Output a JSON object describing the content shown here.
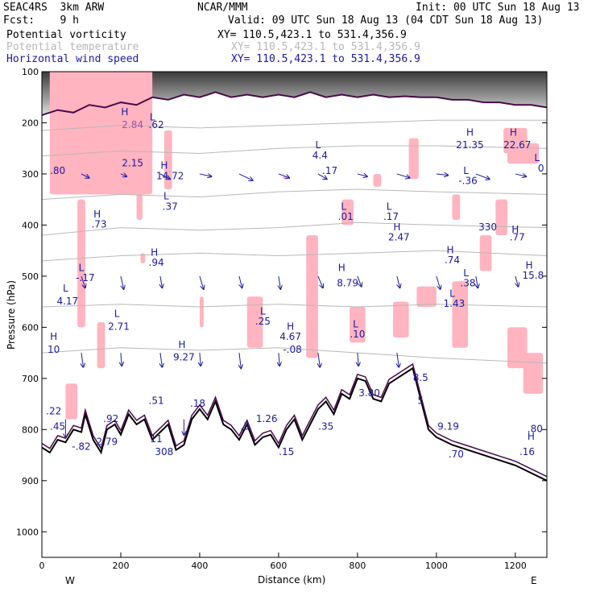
{
  "header": {
    "model": "SEAC4RS  3km ARW",
    "org": "NCAR/MMM",
    "init": "Init: 00 UTC Sun 18 Aug 13",
    "fcst": "Fcst:    9 h",
    "valid": "Valid: 09 UTC Sun 18 Aug 13 (04 CDT Sun 18 Aug 13)"
  },
  "fields": [
    {
      "name": "Potential vorticity",
      "xy": "XY= 110.5,423.1 to 531.4,356.9",
      "color": "#000000"
    },
    {
      "name": "Potential temperature",
      "xy": "XY= 110.5,423.1 to 531.4,356.9",
      "color": "#b8b8b8"
    },
    {
      "name": "Horizontal wind speed",
      "xy": "XY= 110.5,423.1 to 531.4,356.9",
      "color": "#1a1aa0"
    }
  ],
  "chart_data": {
    "type": "cross-section",
    "xlabel": "Distance (km)",
    "ylabel": "Pressure (hPa)",
    "xlim": [
      0,
      1280
    ],
    "ylim": [
      1050,
      100
    ],
    "x_ticks": [
      0,
      200,
      400,
      600,
      800,
      1000,
      1200
    ],
    "y_ticks": [
      100,
      200,
      300,
      400,
      500,
      600,
      700,
      800,
      900,
      1000
    ],
    "left_end": "W",
    "right_end": "E",
    "terrain": [
      [
        0,
        835
      ],
      [
        20,
        845
      ],
      [
        40,
        820
      ],
      [
        60,
        825
      ],
      [
        80,
        800
      ],
      [
        100,
        805
      ],
      [
        110,
        770
      ],
      [
        130,
        820
      ],
      [
        150,
        845
      ],
      [
        165,
        800
      ],
      [
        185,
        790
      ],
      [
        200,
        810
      ],
      [
        220,
        770
      ],
      [
        240,
        790
      ],
      [
        260,
        780
      ],
      [
        280,
        820
      ],
      [
        300,
        805
      ],
      [
        320,
        790
      ],
      [
        340,
        840
      ],
      [
        360,
        830
      ],
      [
        380,
        780
      ],
      [
        400,
        760
      ],
      [
        420,
        780
      ],
      [
        440,
        745
      ],
      [
        460,
        790
      ],
      [
        480,
        800
      ],
      [
        500,
        820
      ],
      [
        520,
        790
      ],
      [
        540,
        830
      ],
      [
        560,
        815
      ],
      [
        580,
        810
      ],
      [
        600,
        835
      ],
      [
        620,
        800
      ],
      [
        640,
        780
      ],
      [
        660,
        820
      ],
      [
        680,
        790
      ],
      [
        700,
        760
      ],
      [
        720,
        745
      ],
      [
        740,
        770
      ],
      [
        760,
        730
      ],
      [
        780,
        740
      ],
      [
        800,
        700
      ],
      [
        820,
        705
      ],
      [
        840,
        740
      ],
      [
        860,
        745
      ],
      [
        880,
        710
      ],
      [
        900,
        700
      ],
      [
        920,
        690
      ],
      [
        940,
        680
      ],
      [
        960,
        740
      ],
      [
        980,
        800
      ],
      [
        1000,
        815
      ],
      [
        1040,
        830
      ],
      [
        1080,
        840
      ],
      [
        1120,
        850
      ],
      [
        1160,
        860
      ],
      [
        1200,
        870
      ],
      [
        1240,
        885
      ],
      [
        1280,
        900
      ]
    ],
    "tropopause": [
      [
        0,
        185
      ],
      [
        40,
        175
      ],
      [
        80,
        180
      ],
      [
        120,
        165
      ],
      [
        160,
        170
      ],
      [
        200,
        160
      ],
      [
        240,
        165
      ],
      [
        280,
        150
      ],
      [
        320,
        155
      ],
      [
        360,
        145
      ],
      [
        400,
        150
      ],
      [
        440,
        140
      ],
      [
        480,
        150
      ],
      [
        520,
        145
      ],
      [
        560,
        150
      ],
      [
        600,
        145
      ],
      [
        640,
        150
      ],
      [
        680,
        140
      ],
      [
        720,
        150
      ],
      [
        760,
        145
      ],
      [
        800,
        150
      ],
      [
        840,
        145
      ],
      [
        880,
        150
      ],
      [
        920,
        148
      ],
      [
        960,
        150
      ],
      [
        1000,
        150
      ],
      [
        1040,
        155
      ],
      [
        1080,
        155
      ],
      [
        1120,
        160
      ],
      [
        1160,
        160
      ],
      [
        1200,
        165
      ],
      [
        1240,
        165
      ],
      [
        1280,
        170
      ]
    ],
    "isentropes": [
      [
        [
          0,
          215
        ],
        [
          200,
          205
        ],
        [
          400,
          210
        ],
        [
          600,
          205
        ],
        [
          800,
          200
        ],
        [
          1000,
          195
        ],
        [
          1280,
          195
        ]
      ],
      [
        [
          0,
          265
        ],
        [
          200,
          255
        ],
        [
          400,
          260
        ],
        [
          600,
          250
        ],
        [
          800,
          245
        ],
        [
          1000,
          245
        ],
        [
          1280,
          250
        ]
      ],
      [
        [
          0,
          350
        ],
        [
          200,
          340
        ],
        [
          400,
          345
        ],
        [
          600,
          335
        ],
        [
          800,
          330
        ],
        [
          1000,
          335
        ],
        [
          1280,
          340
        ]
      ],
      [
        [
          0,
          420
        ],
        [
          200,
          405
        ],
        [
          400,
          410
        ],
        [
          600,
          405
        ],
        [
          800,
          395
        ],
        [
          1000,
          400
        ],
        [
          1280,
          405
        ]
      ],
      [
        [
          0,
          470
        ],
        [
          200,
          460
        ],
        [
          400,
          455
        ],
        [
          600,
          460
        ],
        [
          800,
          455
        ],
        [
          1000,
          450
        ],
        [
          1280,
          460
        ]
      ],
      [
        [
          0,
          560
        ],
        [
          200,
          555
        ],
        [
          400,
          560
        ],
        [
          600,
          555
        ],
        [
          800,
          560
        ],
        [
          1000,
          555
        ],
        [
          1280,
          560
        ]
      ],
      [
        [
          0,
          650
        ],
        [
          200,
          640
        ],
        [
          400,
          645
        ],
        [
          600,
          640
        ],
        [
          800,
          650
        ],
        [
          1000,
          660
        ],
        [
          1280,
          670
        ]
      ]
    ],
    "pv_patches": [
      [
        20,
        280,
        60,
        340
      ],
      [
        150,
        190,
        40,
        210
      ],
      [
        240,
        255,
        130,
        390
      ],
      [
        310,
        330,
        215,
        330
      ],
      [
        90,
        110,
        350,
        600
      ],
      [
        250,
        262,
        455,
        475
      ],
      [
        400,
        410,
        540,
        600
      ],
      [
        610,
        625,
        305,
        310
      ],
      [
        840,
        860,
        300,
        325
      ],
      [
        930,
        955,
        230,
        310
      ],
      [
        1040,
        1060,
        340,
        390
      ],
      [
        1110,
        1140,
        420,
        490
      ],
      [
        1170,
        1230,
        210,
        260
      ],
      [
        1180,
        1260,
        240,
        280
      ],
      [
        60,
        90,
        710,
        780
      ],
      [
        140,
        160,
        590,
        680
      ],
      [
        520,
        560,
        540,
        640
      ],
      [
        670,
        700,
        420,
        660
      ],
      [
        760,
        790,
        350,
        400
      ],
      [
        780,
        820,
        560,
        630
      ],
      [
        890,
        930,
        550,
        620
      ],
      [
        950,
        1000,
        520,
        560
      ],
      [
        1040,
        1080,
        510,
        640
      ],
      [
        1150,
        1180,
        350,
        420
      ],
      [
        1180,
        1230,
        600,
        680
      ],
      [
        1220,
        1270,
        650,
        730
      ]
    ],
    "wind_vectors": [
      {
        "x": 100,
        "p": 300,
        "u": 8,
        "v": 3
      },
      {
        "x": 200,
        "p": 300,
        "u": 6,
        "v": 2
      },
      {
        "x": 300,
        "p": 300,
        "u": 10,
        "v": 4
      },
      {
        "x": 400,
        "p": 300,
        "u": 12,
        "v": 2
      },
      {
        "x": 500,
        "p": 300,
        "u": 14,
        "v": 5
      },
      {
        "x": 600,
        "p": 300,
        "u": 11,
        "v": 3
      },
      {
        "x": 700,
        "p": 300,
        "u": 9,
        "v": 4
      },
      {
        "x": 800,
        "p": 300,
        "u": 10,
        "v": 2
      },
      {
        "x": 900,
        "p": 300,
        "u": 13,
        "v": 3
      },
      {
        "x": 1000,
        "p": 300,
        "u": 12,
        "v": 1
      },
      {
        "x": 1100,
        "p": 300,
        "u": 14,
        "v": 4
      },
      {
        "x": 1200,
        "p": 300,
        "u": 11,
        "v": 2
      },
      {
        "x": 100,
        "p": 500,
        "u": 4,
        "v": 9
      },
      {
        "x": 200,
        "p": 500,
        "u": 3,
        "v": 10
      },
      {
        "x": 300,
        "p": 500,
        "u": 2,
        "v": 9
      },
      {
        "x": 400,
        "p": 500,
        "u": 4,
        "v": 10
      },
      {
        "x": 500,
        "p": 500,
        "u": 3,
        "v": 9
      },
      {
        "x": 600,
        "p": 500,
        "u": 2,
        "v": 10
      },
      {
        "x": 700,
        "p": 500,
        "u": 5,
        "v": 9
      },
      {
        "x": 800,
        "p": 500,
        "u": 4,
        "v": 8
      },
      {
        "x": 900,
        "p": 500,
        "u": 3,
        "v": 9
      },
      {
        "x": 1000,
        "p": 500,
        "u": 4,
        "v": 10
      },
      {
        "x": 1100,
        "p": 500,
        "u": 2,
        "v": 9
      },
      {
        "x": 1200,
        "p": 500,
        "u": 3,
        "v": 8
      },
      {
        "x": 100,
        "p": 650,
        "u": 2,
        "v": 11
      },
      {
        "x": 200,
        "p": 650,
        "u": 1,
        "v": 10
      },
      {
        "x": 300,
        "p": 650,
        "u": 2,
        "v": 11
      },
      {
        "x": 400,
        "p": 650,
        "u": 1,
        "v": 10
      },
      {
        "x": 500,
        "p": 650,
        "u": 2,
        "v": 12
      },
      {
        "x": 600,
        "p": 650,
        "u": 1,
        "v": 10
      },
      {
        "x": 700,
        "p": 650,
        "u": 2,
        "v": 11
      },
      {
        "x": 800,
        "p": 650,
        "u": 1,
        "v": 10
      },
      {
        "x": 900,
        "p": 650,
        "u": 2,
        "v": 11
      },
      {
        "x": 510,
        "p": 800,
        "u": 0,
        "v": 30
      },
      {
        "x": 60,
        "p": 780,
        "u": 0,
        "v": 14
      },
      {
        "x": 360,
        "p": 780,
        "u": 0,
        "v": 12
      }
    ],
    "annotations": [
      {
        "x": 230,
        "p": 210,
        "text": "2.84",
        "color": "#a050b0"
      },
      {
        "x": 280,
        "p": 195,
        "text": "L"
      },
      {
        "x": 290,
        "p": 210,
        "text": ".62"
      },
      {
        "x": 210,
        "p": 185,
        "text": "H"
      },
      {
        "x": 230,
        "p": 285,
        "text": "2.15"
      },
      {
        "x": 310,
        "p": 290,
        "text": "H"
      },
      {
        "x": 325,
        "p": 310,
        "text": "14.72"
      },
      {
        "x": 315,
        "p": 350,
        "text": "L"
      },
      {
        "x": 325,
        "p": 370,
        "text": ".37"
      },
      {
        "x": 140,
        "p": 385,
        "text": "H"
      },
      {
        "x": 145,
        "p": 405,
        "text": ".73"
      },
      {
        "x": 285,
        "p": 460,
        "text": "H"
      },
      {
        "x": 290,
        "p": 480,
        "text": ".94"
      },
      {
        "x": 100,
        "p": 490,
        "text": "L"
      },
      {
        "x": 110,
        "p": 510,
        "text": "-.17"
      },
      {
        "x": 60,
        "p": 530,
        "text": "L"
      },
      {
        "x": 65,
        "p": 555,
        "text": "4.17"
      },
      {
        "x": 190,
        "p": 580,
        "text": "L"
      },
      {
        "x": 195,
        "p": 605,
        "text": "2.71"
      },
      {
        "x": 30,
        "p": 625,
        "text": "H"
      },
      {
        "x": 30,
        "p": 650,
        "text": "10"
      },
      {
        "x": 355,
        "p": 640,
        "text": "H"
      },
      {
        "x": 360,
        "p": 665,
        "text": "9.27"
      },
      {
        "x": 560,
        "p": 575,
        "text": "L"
      },
      {
        "x": 560,
        "p": 595,
        "text": ".25"
      },
      {
        "x": 630,
        "p": 605,
        "text": "H"
      },
      {
        "x": 630,
        "p": 625,
        "text": "4.67"
      },
      {
        "x": 635,
        "p": 650,
        "text": "-.08"
      },
      {
        "x": 795,
        "p": 600,
        "text": "L"
      },
      {
        "x": 800,
        "p": 620,
        "text": ".10"
      },
      {
        "x": 760,
        "p": 490,
        "text": "H"
      },
      {
        "x": 775,
        "p": 520,
        "text": "8.79"
      },
      {
        "x": 765,
        "p": 370,
        "text": "L"
      },
      {
        "x": 770,
        "p": 390,
        "text": ".01"
      },
      {
        "x": 880,
        "p": 370,
        "text": "L"
      },
      {
        "x": 885,
        "p": 390,
        "text": ".17"
      },
      {
        "x": 900,
        "p": 410,
        "text": "H"
      },
      {
        "x": 905,
        "p": 430,
        "text": "2.47"
      },
      {
        "x": 700,
        "p": 250,
        "text": "L"
      },
      {
        "x": 705,
        "p": 270,
        "text": "4.4"
      },
      {
        "x": 730,
        "p": 300,
        "text": ".17"
      },
      {
        "x": 1035,
        "p": 455,
        "text": "H"
      },
      {
        "x": 1040,
        "p": 475,
        "text": ".74"
      },
      {
        "x": 1075,
        "p": 500,
        "text": "L"
      },
      {
        "x": 1080,
        "p": 520,
        "text": ".38"
      },
      {
        "x": 1040,
        "p": 540,
        "text": "L"
      },
      {
        "x": 1045,
        "p": 560,
        "text": "1.43"
      },
      {
        "x": 1075,
        "p": 300,
        "text": "L"
      },
      {
        "x": 1080,
        "p": 320,
        "text": "-.36"
      },
      {
        "x": 1200,
        "p": 415,
        "text": "H"
      },
      {
        "x": 1205,
        "p": 430,
        "text": ".77"
      },
      {
        "x": 1235,
        "p": 485,
        "text": "H"
      },
      {
        "x": 1245,
        "p": 505,
        "text": "15.8"
      },
      {
        "x": 1085,
        "p": 225,
        "text": "H"
      },
      {
        "x": 1085,
        "p": 250,
        "text": "21.35"
      },
      {
        "x": 1195,
        "p": 225,
        "text": "H"
      },
      {
        "x": 1205,
        "p": 250,
        "text": "22.67"
      },
      {
        "x": 1255,
        "p": 275,
        "text": "L"
      },
      {
        "x": 1265,
        "p": 295,
        "text": "0"
      },
      {
        "x": 40,
        "p": 300,
        "text": ".80"
      },
      {
        "x": 30,
        "p": 770,
        "text": ".22"
      },
      {
        "x": 40,
        "p": 800,
        "text": ".45"
      },
      {
        "x": 100,
        "p": 840,
        "text": "-.82"
      },
      {
        "x": 175,
        "p": 785,
        "text": ".92"
      },
      {
        "x": 165,
        "p": 830,
        "text": "2.79"
      },
      {
        "x": 290,
        "p": 825,
        "text": "11"
      },
      {
        "x": 310,
        "p": 850,
        "text": "308"
      },
      {
        "x": 290,
        "p": 750,
        "text": ".51"
      },
      {
        "x": 395,
        "p": 755,
        "text": ".18"
      },
      {
        "x": 515,
        "p": 800,
        "text": ".5"
      },
      {
        "x": 570,
        "p": 785,
        "text": "1.26"
      },
      {
        "x": 620,
        "p": 850,
        "text": ".15"
      },
      {
        "x": 720,
        "p": 800,
        "text": ".35"
      },
      {
        "x": 830,
        "p": 735,
        "text": "3.80"
      },
      {
        "x": 960,
        "p": 705,
        "text": "8.5"
      },
      {
        "x": 960,
        "p": 750,
        "text": "5"
      },
      {
        "x": 1030,
        "p": 800,
        "text": "9.19"
      },
      {
        "x": 1250,
        "p": 805,
        "text": ".80"
      },
      {
        "x": 1230,
        "p": 850,
        "text": ".16"
      },
      {
        "x": 1240,
        "p": 820,
        "text": "H"
      },
      {
        "x": 1050,
        "p": 855,
        "text": ".70"
      },
      {
        "x": 1130,
        "p": 410,
        "text": "330"
      }
    ]
  }
}
